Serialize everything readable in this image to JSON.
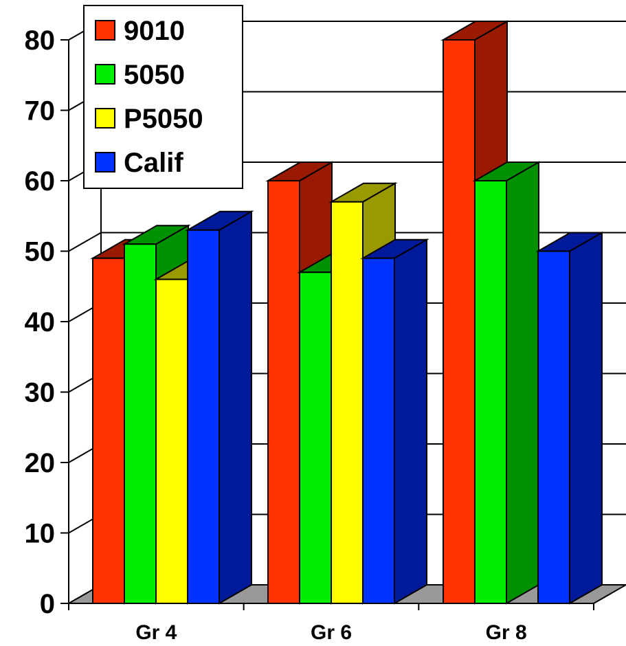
{
  "chart_data": {
    "type": "bar",
    "style": "3d-clustered",
    "categories": [
      "Gr 4",
      "Gr 6",
      "Gr 8"
    ],
    "series": [
      {
        "name": "9010",
        "color": "#ff3300",
        "side_color": "#991a00",
        "values": [
          49,
          60,
          80
        ]
      },
      {
        "name": "5050",
        "color": "#00ee00",
        "side_color": "#009100",
        "values": [
          51,
          47,
          60
        ]
      },
      {
        "name": "P5050",
        "color": "#ffff00",
        "side_color": "#999900",
        "values": [
          46,
          57,
          null
        ]
      },
      {
        "name": "Calif",
        "color": "#0033ff",
        "side_color": "#001a99",
        "values": [
          53,
          49,
          50
        ]
      }
    ],
    "y_ticks": [
      "0",
      "10",
      "20",
      "30",
      "40",
      "50",
      "60",
      "70",
      "80"
    ],
    "ylim": [
      0,
      80
    ],
    "grid": true,
    "legend_position": "top-left",
    "floor_color": "#999999"
  }
}
